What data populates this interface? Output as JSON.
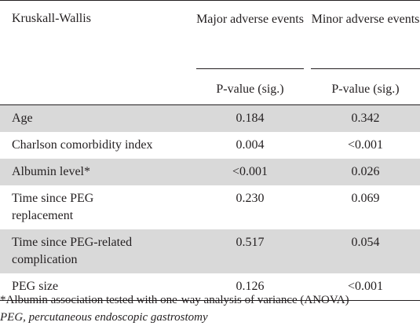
{
  "table": {
    "title": "Kruskall-Wallis",
    "col2_header": "Major adverse events",
    "col3_header": "Minor adverse events",
    "col2_sub": "P-value (sig.)",
    "col3_sub": "P-value (sig.)",
    "rows": [
      {
        "label": "Age",
        "major": "0.184",
        "minor": "0.342"
      },
      {
        "label": "Charlson comorbidity index",
        "major": "0.004",
        "minor": "<0.001"
      },
      {
        "label": "Albumin level*",
        "major": "<0.001",
        "minor": "0.026"
      },
      {
        "label": "Time since PEG replacement",
        "major": "0.230",
        "minor": "0.069"
      },
      {
        "label": "Time since PEG-related complication",
        "major": "0.517",
        "minor": "0.054"
      },
      {
        "label": "PEG size",
        "major": "0.126",
        "minor": "<0.001"
      }
    ]
  },
  "notes": {
    "footnote": "*Albumin association tested with one-way analysis of variance (ANOVA)",
    "abbreviation": "PEG, percutaneous endoscopic gastrostomy"
  },
  "colors": {
    "text": "#231f20",
    "shade": "#d9d9d9"
  }
}
